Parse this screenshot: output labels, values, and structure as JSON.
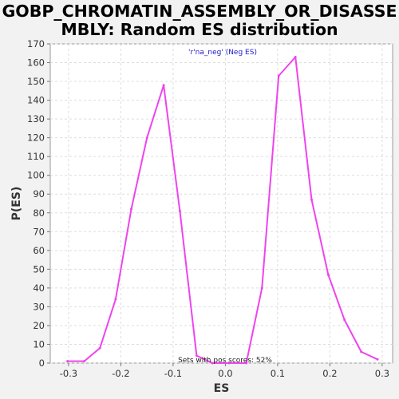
{
  "chart_data": {
    "type": "line",
    "title_lines": [
      "GOBP_CHROMATIN_ASSEMBLY_OR_DISASSE",
      "MBLY: Random ES distribution"
    ],
    "xlabel": "ES",
    "ylabel": "P(ES)",
    "xlim": [
      -0.335,
      0.32
    ],
    "ylim": [
      0,
      170
    ],
    "x_ticks": [
      -0.3,
      -0.2,
      -0.1,
      0.0,
      0.1,
      0.2,
      0.3
    ],
    "x_tick_labels": [
      "-0.3",
      "-0.2",
      "-0.1",
      "0.0",
      "0.1",
      "0.2",
      "0.3"
    ],
    "y_ticks": [
      0,
      10,
      20,
      30,
      40,
      50,
      60,
      70,
      80,
      90,
      100,
      110,
      120,
      130,
      140,
      150,
      160,
      170
    ],
    "y_tick_labels": [
      "0",
      "10",
      "20",
      "30",
      "40",
      "50",
      "60",
      "70",
      "80",
      "90",
      "100",
      "110",
      "120",
      "130",
      "140",
      "150",
      "160",
      "170"
    ],
    "grid": true,
    "legend": {
      "position": "top-center",
      "entries": [
        "'r'na_neg' (Neg ES)"
      ]
    },
    "annotation": "Sets with pos scores: 52%",
    "series": [
      {
        "color": "#ee44ee",
        "x": [
          -0.302,
          -0.27,
          -0.24,
          -0.21,
          -0.18,
          -0.15,
          -0.118,
          -0.087,
          -0.055,
          -0.025,
          0.007,
          0.04,
          0.07,
          0.102,
          0.134,
          0.165,
          0.197,
          0.228,
          0.26,
          0.291
        ],
        "y": [
          1,
          1,
          8,
          34,
          82,
          120,
          148,
          81,
          4,
          0,
          0,
          0,
          40,
          153,
          163,
          87,
          47,
          23,
          6,
          2
        ]
      }
    ]
  }
}
